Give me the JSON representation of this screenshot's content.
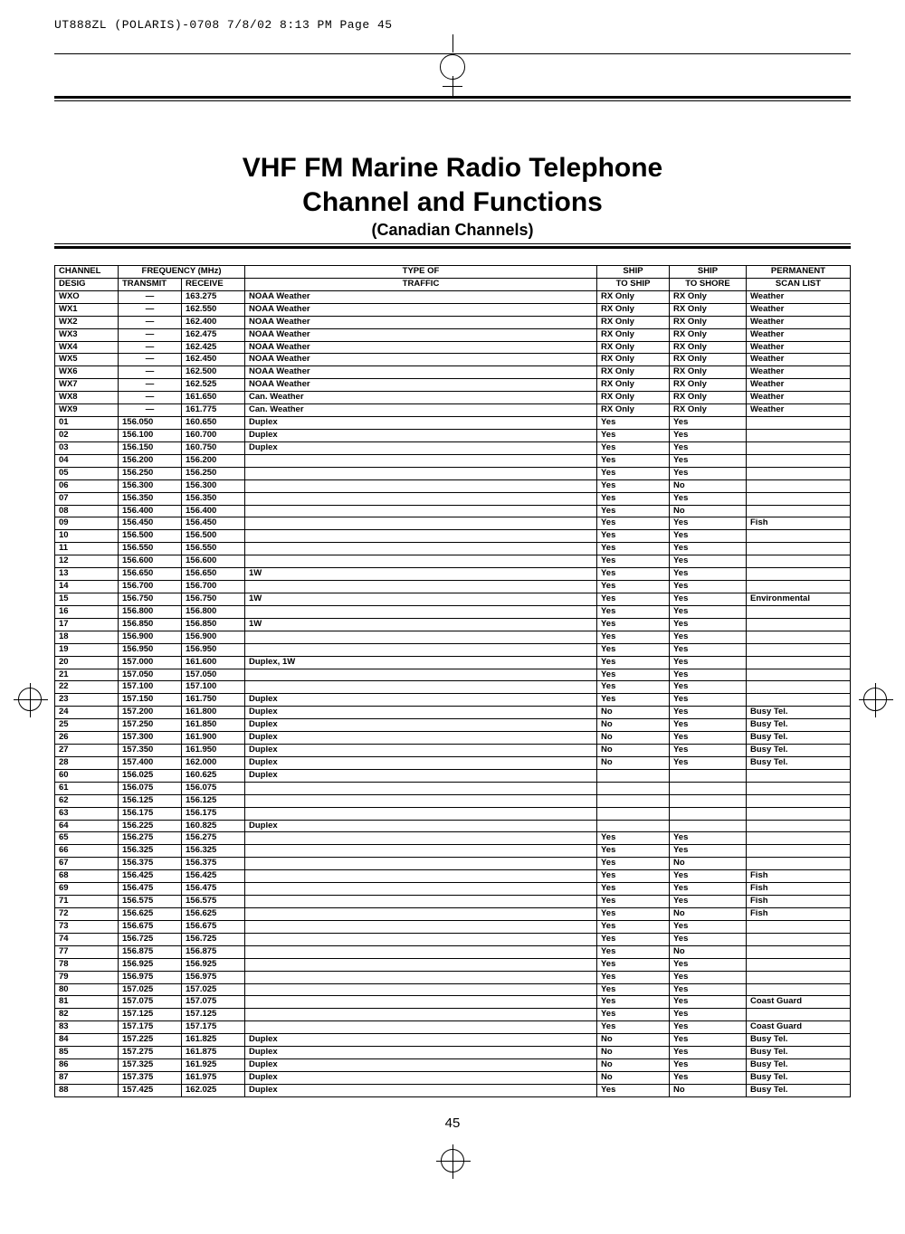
{
  "headerLine": "UT888ZL  (POLARIS)-0708  7/8/02  8:13 PM  Page 45",
  "titleMain": "VHF FM Marine Radio Telephone\nChannel and Functions",
  "titleSub": "(Canadian Channels)",
  "pageNumber": "45",
  "columns": {
    "channel": {
      "l1": "CHANNEL",
      "l2": "DESIG"
    },
    "freq": {
      "l1": "FREQUENCY (MHz)",
      "tx": "TRANSMIT",
      "rx": "RECEIVE"
    },
    "type": {
      "l1": "TYPE OF",
      "l2": "TRAFFIC"
    },
    "ship1": {
      "l1": "SHIP",
      "l2": "TO SHIP"
    },
    "ship2": {
      "l1": "SHIP",
      "l2": "TO SHORE"
    },
    "perm": {
      "l1": "PERMANENT",
      "l2": "SCAN LIST"
    }
  },
  "rows": [
    [
      "WXO",
      "—",
      "163.275",
      "NOAA Weather",
      "RX Only",
      "RX Only",
      "Weather"
    ],
    [
      "WX1",
      "—",
      "162.550",
      "NOAA Weather",
      "RX Only",
      "RX Only",
      "Weather"
    ],
    [
      "WX2",
      "—",
      "162.400",
      "NOAA Weather",
      "RX Only",
      "RX Only",
      "Weather"
    ],
    [
      "WX3",
      "—",
      "162.475",
      "NOAA Weather",
      "RX Only",
      "RX Only",
      "Weather"
    ],
    [
      "WX4",
      "—",
      "162.425",
      "NOAA Weather",
      "RX Only",
      "RX Only",
      "Weather"
    ],
    [
      "WX5",
      "—",
      "162.450",
      "NOAA Weather",
      "RX Only",
      "RX Only",
      "Weather"
    ],
    [
      "WX6",
      "—",
      "162.500",
      "NOAA Weather",
      "RX Only",
      "RX Only",
      "Weather"
    ],
    [
      "WX7",
      "—",
      "162.525",
      "NOAA Weather",
      "RX Only",
      "RX Only",
      "Weather"
    ],
    [
      "WX8",
      "—",
      "161.650",
      "Can. Weather",
      "RX Only",
      "RX Only",
      "Weather"
    ],
    [
      "WX9",
      "—",
      "161.775",
      "Can. Weather",
      "RX Only",
      "RX Only",
      "Weather"
    ],
    [
      "01",
      "156.050",
      "160.650",
      "Duplex",
      "Yes",
      "Yes",
      ""
    ],
    [
      "02",
      "156.100",
      "160.700",
      "Duplex",
      "Yes",
      "Yes",
      ""
    ],
    [
      "03",
      "156.150",
      "160.750",
      "Duplex",
      "Yes",
      "Yes",
      ""
    ],
    [
      "04",
      "156.200",
      "156.200",
      "",
      "Yes",
      "Yes",
      ""
    ],
    [
      "05",
      "156.250",
      "156.250",
      "",
      "Yes",
      "Yes",
      ""
    ],
    [
      "06",
      "156.300",
      "156.300",
      "",
      "Yes",
      "No",
      ""
    ],
    [
      "07",
      "156.350",
      "156.350",
      "",
      "Yes",
      "Yes",
      ""
    ],
    [
      "08",
      "156.400",
      "156.400",
      "",
      "Yes",
      "No",
      ""
    ],
    [
      "09",
      "156.450",
      "156.450",
      "",
      "Yes",
      "Yes",
      "Fish"
    ],
    [
      "10",
      "156.500",
      "156.500",
      "",
      "Yes",
      "Yes",
      ""
    ],
    [
      "11",
      "156.550",
      "156.550",
      "",
      "Yes",
      "Yes",
      ""
    ],
    [
      "12",
      "156.600",
      "156.600",
      "",
      "Yes",
      "Yes",
      ""
    ],
    [
      "13",
      "156.650",
      "156.650",
      "1W",
      "Yes",
      "Yes",
      ""
    ],
    [
      "14",
      "156.700",
      "156.700",
      "",
      "Yes",
      "Yes",
      ""
    ],
    [
      "15",
      "156.750",
      "156.750",
      "1W",
      "Yes",
      "Yes",
      "Environmental"
    ],
    [
      "16",
      "156.800",
      "156.800",
      "",
      "Yes",
      "Yes",
      ""
    ],
    [
      "17",
      "156.850",
      "156.850",
      "1W",
      "Yes",
      "Yes",
      ""
    ],
    [
      "18",
      "156.900",
      "156.900",
      "",
      "Yes",
      "Yes",
      ""
    ],
    [
      "19",
      "156.950",
      "156.950",
      "",
      "Yes",
      "Yes",
      ""
    ],
    [
      "20",
      "157.000",
      "161.600",
      "Duplex, 1W",
      "Yes",
      "Yes",
      ""
    ],
    [
      "21",
      "157.050",
      "157.050",
      "",
      "Yes",
      "Yes",
      ""
    ],
    [
      "22",
      "157.100",
      "157.100",
      "",
      "Yes",
      "Yes",
      ""
    ],
    [
      "23",
      "157.150",
      "161.750",
      "Duplex",
      "Yes",
      "Yes",
      ""
    ],
    [
      "24",
      "157.200",
      "161.800",
      "Duplex",
      "No",
      "Yes",
      "Busy Tel."
    ],
    [
      "25",
      "157.250",
      "161.850",
      "Duplex",
      "No",
      "Yes",
      "Busy Tel."
    ],
    [
      "26",
      "157.300",
      "161.900",
      "Duplex",
      "No",
      "Yes",
      "Busy Tel."
    ],
    [
      "27",
      "157.350",
      "161.950",
      "Duplex",
      "No",
      "Yes",
      "Busy Tel."
    ],
    [
      "28",
      "157.400",
      "162.000",
      "Duplex",
      "No",
      "Yes",
      "Busy Tel."
    ],
    [
      "60",
      "156.025",
      "160.625",
      "Duplex",
      "",
      "",
      ""
    ],
    [
      "61",
      "156.075",
      "156.075",
      "",
      "",
      "",
      ""
    ],
    [
      "62",
      "156.125",
      "156.125",
      "",
      "",
      "",
      ""
    ],
    [
      "63",
      "156.175",
      "156.175",
      "",
      "",
      "",
      ""
    ],
    [
      "64",
      "156.225",
      "160.825",
      "Duplex",
      "",
      "",
      ""
    ],
    [
      "65",
      "156.275",
      "156.275",
      "",
      "Yes",
      "Yes",
      ""
    ],
    [
      "66",
      "156.325",
      "156.325",
      "",
      "Yes",
      "Yes",
      ""
    ],
    [
      "67",
      "156.375",
      "156.375",
      "",
      "Yes",
      "No",
      ""
    ],
    [
      "68",
      "156.425",
      "156.425",
      "",
      "Yes",
      "Yes",
      "Fish"
    ],
    [
      "69",
      "156.475",
      "156.475",
      "",
      "Yes",
      "Yes",
      "Fish"
    ],
    [
      "71",
      "156.575",
      "156.575",
      "",
      "Yes",
      "Yes",
      "Fish"
    ],
    [
      "72",
      "156.625",
      "156.625",
      "",
      "Yes",
      "No",
      "Fish"
    ],
    [
      "73",
      "156.675",
      "156.675",
      "",
      "Yes",
      "Yes",
      ""
    ],
    [
      "74",
      "156.725",
      "156.725",
      "",
      "Yes",
      "Yes",
      ""
    ],
    [
      "77",
      "156.875",
      "156.875",
      "",
      "Yes",
      "No",
      ""
    ],
    [
      "78",
      "156.925",
      "156.925",
      "",
      "Yes",
      "Yes",
      ""
    ],
    [
      "79",
      "156.975",
      "156.975",
      "",
      "Yes",
      "Yes",
      ""
    ],
    [
      "80",
      "157.025",
      "157.025",
      "",
      "Yes",
      "Yes",
      ""
    ],
    [
      "81",
      "157.075",
      "157.075",
      "",
      "Yes",
      "Yes",
      "Coast Guard"
    ],
    [
      "82",
      "157.125",
      "157.125",
      "",
      "Yes",
      "Yes",
      ""
    ],
    [
      "83",
      "157.175",
      "157.175",
      "",
      "Yes",
      "Yes",
      "Coast Guard"
    ],
    [
      "84",
      "157.225",
      "161.825",
      "Duplex",
      "No",
      "Yes",
      "Busy Tel."
    ],
    [
      "85",
      "157.275",
      "161.875",
      "Duplex",
      "No",
      "Yes",
      "Busy Tel."
    ],
    [
      "86",
      "157.325",
      "161.925",
      "Duplex",
      "No",
      "Yes",
      "Busy Tel."
    ],
    [
      "87",
      "157.375",
      "161.975",
      "Duplex",
      "No",
      "Yes",
      "Busy Tel."
    ],
    [
      "88",
      "157.425",
      "162.025",
      "Duplex",
      "Yes",
      "No",
      "Busy Tel."
    ]
  ]
}
